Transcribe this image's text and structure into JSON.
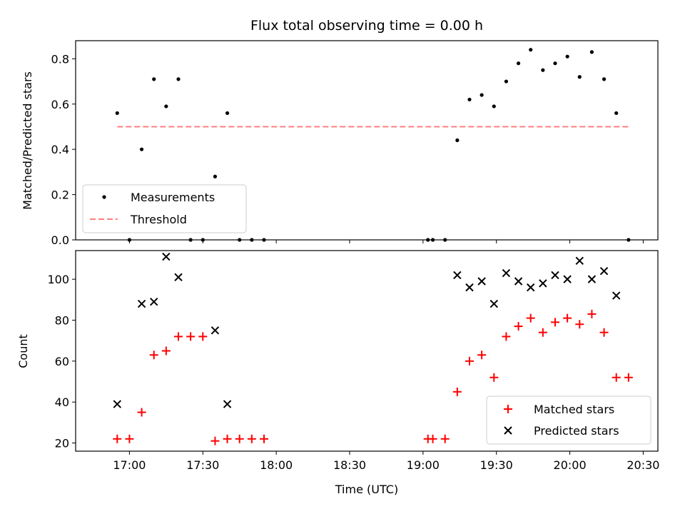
{
  "chart_data": [
    {
      "type": "scatter",
      "title": "Flux total observing time = 0.00 h",
      "xlabel": "",
      "ylabel": "Matched/Predicted stars",
      "ylim": [
        0,
        0.88
      ],
      "yticks": [
        "0.0",
        "0.2",
        "0.4",
        "0.6",
        "0.8"
      ],
      "ytick_values": [
        0,
        0.2,
        0.4,
        0.6,
        0.8
      ],
      "legend_placement": "lower-left",
      "series": [
        {
          "name": "Measurements",
          "color": "#000000",
          "marker": "dot",
          "x": [
            "16:55",
            "17:00",
            "17:05",
            "17:10",
            "17:15",
            "17:20",
            "17:25",
            "17:30",
            "17:35",
            "17:40",
            "17:45",
            "17:50",
            "17:55",
            "19:02",
            "19:04",
            "19:09",
            "19:14",
            "19:19",
            "19:24",
            "19:29",
            "19:34",
            "19:39",
            "19:44",
            "19:49",
            "19:54",
            "19:59",
            "20:04",
            "20:09",
            "20:14",
            "20:19",
            "20:24"
          ],
          "y": [
            0.56,
            0.0,
            0.4,
            0.71,
            0.59,
            0.71,
            0.0,
            0.0,
            0.28,
            0.56,
            0.0,
            0.0,
            0.0,
            0.0,
            0.0,
            0.0,
            0.44,
            0.62,
            0.64,
            0.59,
            0.7,
            0.78,
            0.84,
            0.75,
            0.78,
            0.81,
            0.72,
            0.83,
            0.71,
            0.56,
            0.0
          ]
        },
        {
          "name": "Threshold",
          "color": "#ff7f7f",
          "style": "dashed",
          "x": [
            "16:55",
            "20:24"
          ],
          "y": [
            0.5,
            0.5
          ]
        }
      ]
    },
    {
      "type": "scatter",
      "title": "",
      "xlabel": "Time (UTC)",
      "ylabel": "Count",
      "ylim": [
        16,
        114
      ],
      "yticks": [
        "20",
        "40",
        "60",
        "80",
        "100"
      ],
      "ytick_values": [
        20,
        40,
        60,
        80,
        100
      ],
      "xticks": [
        "17:00",
        "17:30",
        "18:00",
        "18:30",
        "19:00",
        "19:30",
        "20:00",
        "20:30"
      ],
      "legend_placement": "lower-right",
      "series": [
        {
          "name": "Matched stars",
          "color": "#ff0000",
          "marker": "plus",
          "x": [
            "16:55",
            "17:00",
            "17:05",
            "17:10",
            "17:15",
            "17:20",
            "17:25",
            "17:30",
            "17:35",
            "17:40",
            "17:45",
            "17:50",
            "17:55",
            "19:02",
            "19:04",
            "19:09",
            "19:14",
            "19:19",
            "19:24",
            "19:29",
            "19:34",
            "19:39",
            "19:44",
            "19:49",
            "19:54",
            "19:59",
            "20:04",
            "20:09",
            "20:14",
            "20:19",
            "20:24"
          ],
          "y": [
            22,
            22,
            35,
            63,
            65,
            72,
            72,
            72,
            21,
            22,
            22,
            22,
            22,
            22,
            22,
            22,
            45,
            60,
            63,
            52,
            72,
            77,
            81,
            74,
            79,
            81,
            78,
            83,
            74,
            52,
            52
          ]
        },
        {
          "name": "Predicted stars",
          "color": "#000000",
          "marker": "x",
          "x": [
            "16:55",
            "17:05",
            "17:10",
            "17:15",
            "17:20",
            "17:35",
            "17:40",
            "19:14",
            "19:19",
            "19:24",
            "19:29",
            "19:34",
            "19:39",
            "19:44",
            "19:49",
            "19:54",
            "19:59",
            "20:04",
            "20:09",
            "20:14",
            "20:19"
          ],
          "y": [
            39,
            88,
            89,
            111,
            101,
            75,
            39,
            102,
            96,
            99,
            88,
            103,
            99,
            96,
            98,
            102,
            100,
            109,
            100,
            104,
            92
          ]
        }
      ]
    }
  ]
}
